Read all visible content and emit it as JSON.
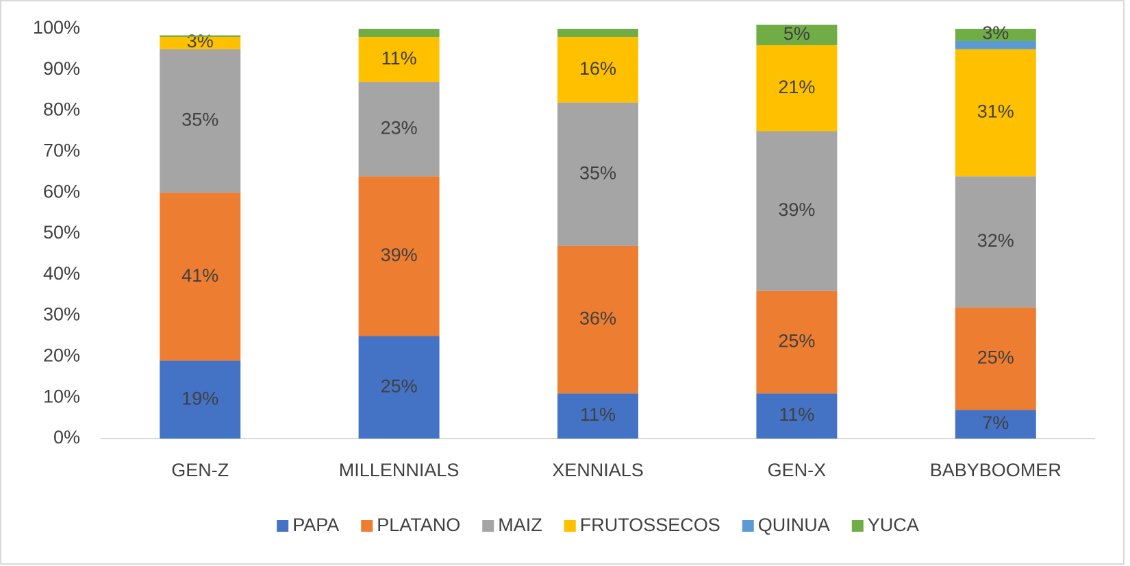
{
  "chart_data": {
    "type": "stacked_bar",
    "categories": [
      "GEN-Z",
      "MILLENNIALS",
      "XENNIALS",
      "GEN-X",
      "BABYBOOMER"
    ],
    "series": [
      {
        "name": "PAPA",
        "color": "#4472c4",
        "values": [
          19,
          25,
          11,
          11,
          7
        ],
        "value_labels": [
          "19%",
          "25%",
          "11%",
          "11%",
          "7%"
        ]
      },
      {
        "name": "PLATANO",
        "color": "#ed7d31",
        "values": [
          41,
          39,
          36,
          25,
          25
        ],
        "value_labels": [
          "41%",
          "39%",
          "36%",
          "25%",
          "25%"
        ]
      },
      {
        "name": "MAIZ",
        "color": "#a5a5a5",
        "values": [
          35,
          23,
          35,
          39,
          32
        ],
        "value_labels": [
          "35%",
          "23%",
          "35%",
          "39%",
          "32%"
        ]
      },
      {
        "name": "FRUTOSSECOS",
        "color": "#ffc000",
        "values": [
          3,
          11,
          16,
          21,
          31
        ],
        "value_labels": [
          "3%",
          "11%",
          "16%",
          "21%",
          "31%"
        ]
      },
      {
        "name": "QUINUA",
        "color": "#5b9bd5",
        "values": [
          0,
          0,
          0,
          0,
          2
        ],
        "value_labels": [
          null,
          null,
          null,
          null,
          null
        ]
      },
      {
        "name": "YUCA",
        "color": "#70ad47",
        "values": [
          0.4,
          2,
          2,
          5,
          3
        ],
        "value_labels": [
          null,
          null,
          null,
          "5%",
          "3%"
        ]
      }
    ],
    "ylim": [
      0,
      100
    ],
    "yticks": [
      {
        "value": 0,
        "label": "0%"
      },
      {
        "value": 10,
        "label": "10%"
      },
      {
        "value": 20,
        "label": "20%"
      },
      {
        "value": 30,
        "label": "30%"
      },
      {
        "value": 40,
        "label": "40%"
      },
      {
        "value": 50,
        "label": "50%"
      },
      {
        "value": 60,
        "label": "60%"
      },
      {
        "value": 70,
        "label": "70%"
      },
      {
        "value": 80,
        "label": "80%"
      },
      {
        "value": 90,
        "label": "90%"
      },
      {
        "value": 100,
        "label": "100%"
      }
    ],
    "grid": false,
    "legend": "bottom"
  }
}
